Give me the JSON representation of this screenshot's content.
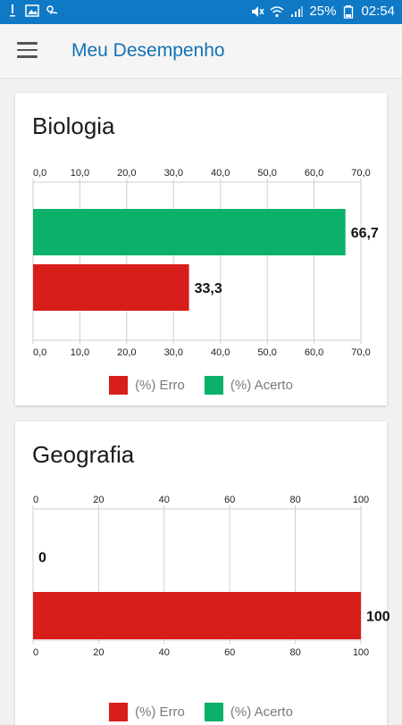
{
  "status_bar": {
    "battery": "25%",
    "time": "02:54"
  },
  "app_bar": {
    "title": "Meu Desempenho"
  },
  "colors": {
    "status_bar": "#0f79c6",
    "title": "#1372b5",
    "erro": "#d81e1b",
    "acerto": "#0bb069"
  },
  "legend": {
    "erro": "(%) Erro",
    "acerto": "(%) Acerto"
  },
  "chart_data": [
    {
      "type": "bar",
      "orientation": "horizontal",
      "title": "Biologia",
      "series": [
        {
          "name": "(%) Acerto",
          "value": 66.7,
          "label": "66,7",
          "color": "#0bb069"
        },
        {
          "name": "(%) Erro",
          "value": 33.3,
          "label": "33,3",
          "color": "#d81e1b"
        }
      ],
      "xlim": [
        0,
        70
      ],
      "ticks": [
        0,
        10,
        20,
        30,
        40,
        50,
        60,
        70
      ],
      "tick_labels": [
        "0,0",
        "10,0",
        "20,0",
        "30,0",
        "40,0",
        "50,0",
        "60,0",
        "70,0"
      ],
      "grid": true,
      "legend_position": "bottom"
    },
    {
      "type": "bar",
      "orientation": "horizontal",
      "title": "Geografia",
      "series": [
        {
          "name": "(%) Acerto",
          "value": 0,
          "label": "0",
          "color": "#0bb069"
        },
        {
          "name": "(%) Erro",
          "value": 100,
          "label": "100",
          "color": "#d81e1b"
        }
      ],
      "xlim": [
        0,
        100
      ],
      "ticks": [
        0,
        20,
        40,
        60,
        80,
        100
      ],
      "tick_labels": [
        "0",
        "20",
        "40",
        "60",
        "80",
        "100"
      ],
      "grid": true,
      "legend_position": "bottom"
    }
  ]
}
